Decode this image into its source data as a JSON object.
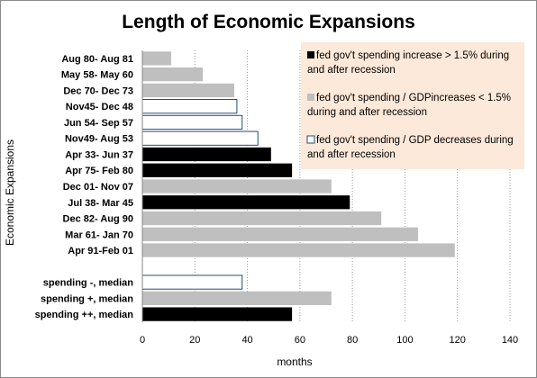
{
  "chart_data": {
    "type": "bar",
    "orientation": "horizontal",
    "title": "Length of Economic Expansions",
    "xlabel": "months",
    "ylabel": "Economic Expansions",
    "xlim": [
      0,
      140
    ],
    "x_ticks": [
      0,
      20,
      40,
      60,
      80,
      100,
      120,
      140
    ],
    "grid": "vertical dashed",
    "legend_position": "top-right",
    "colors": {
      "increase_gt_1_5": "#000000",
      "increase_lt_1_5": "#bfbfbf",
      "decrease": "#ffffff",
      "decrease_border": "#1f4e79",
      "legend_bg": "#fde9d9"
    },
    "legend": [
      {
        "key": "increase_gt_1_5",
        "line1": "fed gov't spending increase > 1.5% during",
        "line2": "and after recession"
      },
      {
        "key": "increase_lt_1_5",
        "line1": "fed gov't spending / GDPincreases < 1.5%",
        "line2": "during and after recession"
      },
      {
        "key": "decrease",
        "line1": "fed gov't spending / GDP decreases during",
        "line2": "and after recession"
      }
    ],
    "categories": [
      {
        "label": "Aug 80- Aug 81",
        "value": 11,
        "group": "increase_lt_1_5"
      },
      {
        "label": "May 58- May 60",
        "value": 23,
        "group": "increase_lt_1_5"
      },
      {
        "label": "Dec 70- Dec 73",
        "value": 35,
        "group": "increase_lt_1_5"
      },
      {
        "label": "Nov45- Dec 48",
        "value": 36,
        "group": "decrease"
      },
      {
        "label": "Jun 54- Sep 57",
        "value": 38,
        "group": "decrease"
      },
      {
        "label": "Nov49- Aug 53",
        "value": 44,
        "group": "decrease"
      },
      {
        "label": "Apr 33- Jun 37",
        "value": 49,
        "group": "increase_gt_1_5"
      },
      {
        "label": "Apr 75- Feb 80",
        "value": 57,
        "group": "increase_gt_1_5"
      },
      {
        "label": "Dec 01- Nov 07",
        "value": 72,
        "group": "increase_lt_1_5"
      },
      {
        "label": "Jul 38- Mar 45",
        "value": 79,
        "group": "increase_gt_1_5"
      },
      {
        "label": "Dec 82- Aug 90",
        "value": 91,
        "group": "increase_lt_1_5"
      },
      {
        "label": "Mar 61- Jan 70",
        "value": 105,
        "group": "increase_lt_1_5"
      },
      {
        "label": "Apr 91-Feb 01",
        "value": 119,
        "group": "increase_lt_1_5"
      },
      {
        "label": "",
        "value": null,
        "group": null
      },
      {
        "label": "spending -, median",
        "value": 38,
        "group": "decrease"
      },
      {
        "label": "spending +, median",
        "value": 72,
        "group": "increase_lt_1_5"
      },
      {
        "label": "spending ++, median",
        "value": 57,
        "group": "increase_gt_1_5"
      }
    ]
  }
}
